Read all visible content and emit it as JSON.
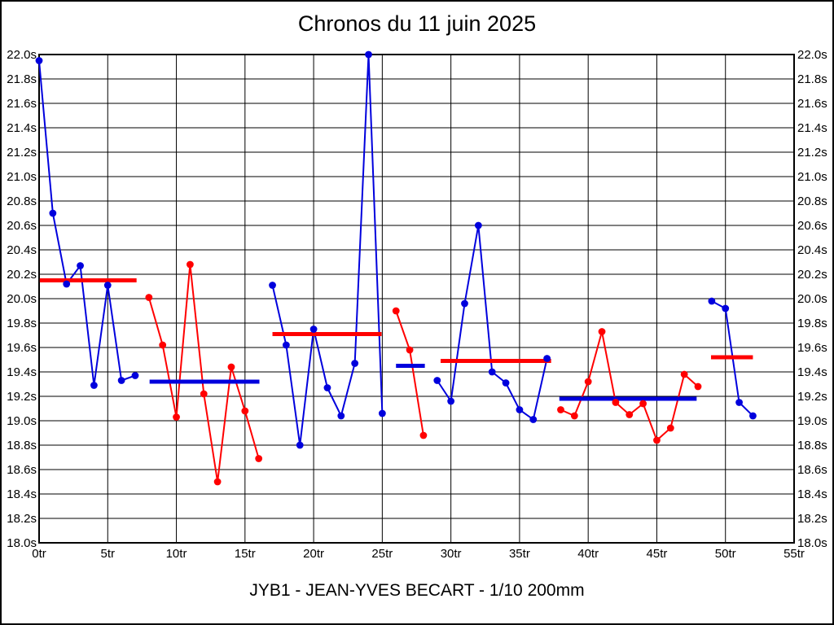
{
  "page": {
    "title": "Chronos du 11 juin 2025",
    "subtitle": "JYB1 - JEAN-YVES BECART - 1/10 200mm"
  },
  "chart_data": {
    "type": "line",
    "title": "Chronos du 11 juin 2025",
    "subtitle": "JYB1 - JEAN-YVES BECART - 1/10 200mm",
    "grid": true,
    "x_axis": {
      "min": 0,
      "max": 55,
      "step": 5,
      "unit": "tr",
      "tick_labels": [
        "0tr",
        "5tr",
        "10tr",
        "15tr",
        "20tr",
        "25tr",
        "30tr",
        "35tr",
        "40tr",
        "45tr",
        "50tr",
        "55tr"
      ]
    },
    "y_axis": {
      "min": 18.0,
      "max": 22.0,
      "step": 0.2,
      "unit": "s",
      "tick_labels": [
        "22.0s",
        "21.8s",
        "21.6s",
        "21.4s",
        "21.2s",
        "21.0s",
        "20.8s",
        "20.6s",
        "20.4s",
        "20.2s",
        "20.0s",
        "19.8s",
        "19.6s",
        "19.4s",
        "19.2s",
        "19.0s",
        "18.8s",
        "18.6s",
        "18.4s",
        "18.2s",
        "18.0s"
      ]
    },
    "colors": {
      "blue": "#0000dd",
      "red": "#ff0000",
      "grid": "#000000"
    },
    "series": [
      {
        "name": "stint-1",
        "color": "blue",
        "start_lap": 0,
        "values": [
          21.95,
          20.7,
          20.12,
          20.27,
          19.29,
          20.11,
          19.33,
          19.37
        ],
        "average": 20.15,
        "average_color": "red",
        "average_span": [
          0.05,
          7.1
        ]
      },
      {
        "name": "stint-2",
        "color": "red",
        "start_lap": 8,
        "values": [
          20.01,
          19.62,
          19.03,
          20.28,
          19.22,
          18.5,
          19.44,
          19.08,
          18.69
        ],
        "average": 19.32,
        "average_color": "blue",
        "average_span": [
          8.05,
          16.05
        ]
      },
      {
        "name": "stint-3",
        "color": "blue",
        "start_lap": 17,
        "values": [
          20.11,
          19.62,
          18.8,
          19.75,
          19.27,
          19.04,
          19.47,
          22.0,
          19.06
        ],
        "average": 19.71,
        "average_color": "red",
        "average_span": [
          17.0,
          24.95
        ]
      },
      {
        "name": "stint-4",
        "color": "red",
        "start_lap": 26,
        "values": [
          19.9,
          19.58,
          18.88
        ],
        "average": 19.45,
        "average_color": "blue",
        "average_span": [
          26.0,
          28.1
        ]
      },
      {
        "name": "stint-5",
        "color": "blue",
        "start_lap": 29,
        "values": [
          19.33,
          19.16,
          19.96,
          20.6,
          19.4,
          19.31,
          19.09,
          19.01,
          19.51
        ],
        "average": 19.49,
        "average_color": "red",
        "average_span": [
          29.25,
          37.3
        ]
      },
      {
        "name": "stint-6",
        "color": "red",
        "start_lap": 38,
        "values": [
          19.09,
          19.04,
          19.32,
          19.73,
          19.15,
          19.05,
          19.14,
          18.84,
          18.94,
          19.38,
          19.28
        ],
        "average": 19.18,
        "average_color": "blue",
        "average_span": [
          37.9,
          47.9
        ]
      },
      {
        "name": "stint-7",
        "color": "blue",
        "start_lap": 49,
        "values": [
          19.98,
          19.92,
          19.15,
          19.04
        ],
        "average": 19.52,
        "average_color": "red",
        "average_span": [
          48.95,
          52.0
        ]
      }
    ]
  }
}
